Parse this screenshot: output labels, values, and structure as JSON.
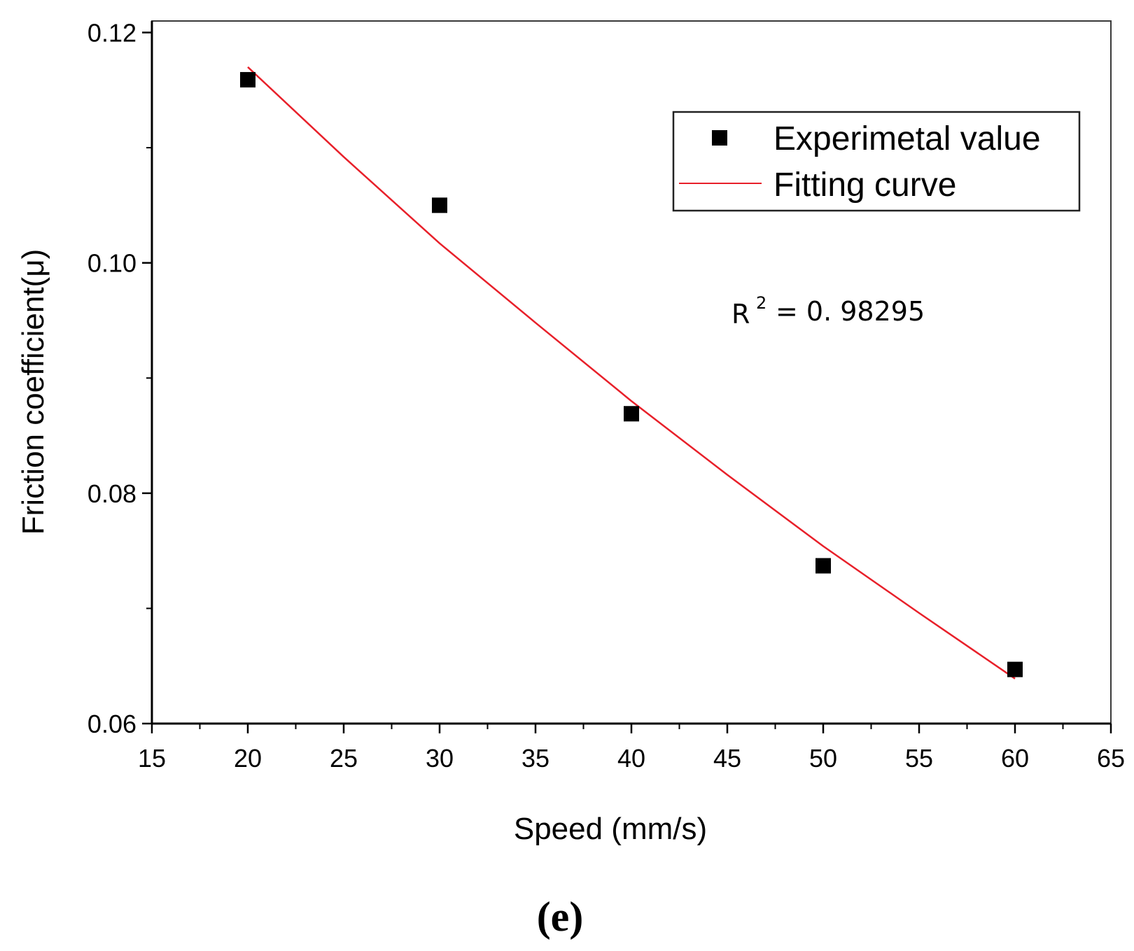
{
  "chart_data": {
    "type": "scatter",
    "title": "",
    "xlabel": "Speed (mm/s)",
    "ylabel": "Friction coefficient(μ)",
    "xlim": [
      15,
      65
    ],
    "ylim": [
      0.06,
      0.121
    ],
    "xticks": [
      15,
      20,
      25,
      30,
      35,
      40,
      45,
      50,
      55,
      60,
      65
    ],
    "xtick_labels": [
      "15",
      "20",
      "25",
      "30",
      "35",
      "40",
      "45",
      "50",
      "55",
      "60",
      "65"
    ],
    "yticks": [
      0.06,
      0.08,
      0.1,
      0.12
    ],
    "ytick_labels": [
      "0.06",
      "0.08",
      "0.10",
      "0.12"
    ],
    "grid": false,
    "legend_position": "top-right",
    "series": [
      {
        "name": "Experimetal value",
        "kind": "scatter",
        "marker": "square",
        "color": "#000000",
        "x": [
          20,
          30,
          40,
          50,
          60
        ],
        "y": [
          0.1159,
          0.105,
          0.0869,
          0.0737,
          0.0647
        ]
      },
      {
        "name": "Fitting curve",
        "kind": "line",
        "color": "#e8202a",
        "x": [
          20,
          25,
          30,
          35,
          40,
          45,
          50,
          55,
          60
        ],
        "y": [
          0.117,
          0.1092,
          0.1017,
          0.0948,
          0.088,
          0.0816,
          0.0754,
          0.0696,
          0.0639
        ]
      }
    ],
    "annotation": {
      "base": "R",
      "superscript": "2",
      "value": "= 0. 98295"
    },
    "panel_label": "(e)"
  }
}
